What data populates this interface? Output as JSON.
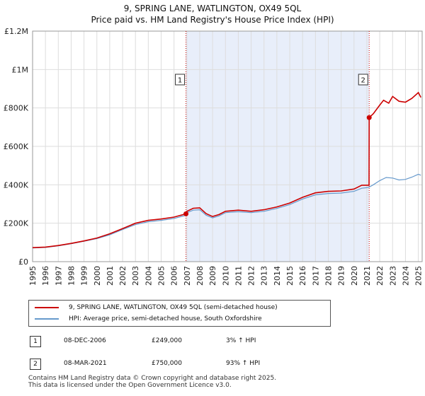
{
  "title": {
    "line1": "9, SPRING LANE, WATLINGTON, OX49 5QL",
    "line2": "Price paid vs. HM Land Registry's House Price Index (HPI)"
  },
  "colors": {
    "price_line": "#cc0000",
    "hpi_line": "#6699cc",
    "shade": "#e8eefa",
    "grid": "#dddddd",
    "marker_line": "#cc0000"
  },
  "chart_data": {
    "type": "line",
    "x_range": [
      1995,
      2025.3
    ],
    "ylim": [
      0,
      1200000
    ],
    "y_ticks": [
      0,
      200000,
      400000,
      600000,
      800000,
      1000000,
      1200000
    ],
    "y_tick_labels": [
      "£0",
      "£200K",
      "£400K",
      "£600K",
      "£800K",
      "£1M",
      "£1.2M"
    ],
    "x_ticks": [
      1995,
      1996,
      1997,
      1998,
      1999,
      2000,
      2001,
      2002,
      2003,
      2004,
      2005,
      2006,
      2007,
      2008,
      2009,
      2010,
      2011,
      2012,
      2013,
      2014,
      2015,
      2016,
      2017,
      2018,
      2019,
      2020,
      2021,
      2022,
      2023,
      2024,
      2025
    ],
    "shaded_region": [
      2006.93,
      2021.18
    ],
    "annotations": [
      {
        "label": "1",
        "x": 2006.93,
        "y": 249000
      },
      {
        "label": "2",
        "x": 2021.18,
        "y": 750000
      }
    ],
    "series": [
      {
        "name": "9, SPRING LANE, WATLINGTON, OX49 5QL (semi-detached house)",
        "color": "#cc0000",
        "points": [
          [
            1995,
            73000
          ],
          [
            1996,
            76000
          ],
          [
            1997,
            84000
          ],
          [
            1998,
            95000
          ],
          [
            1999,
            108000
          ],
          [
            2000,
            123000
          ],
          [
            2001,
            145000
          ],
          [
            2002,
            172000
          ],
          [
            2003,
            200000
          ],
          [
            2004,
            215000
          ],
          [
            2005,
            222000
          ],
          [
            2006,
            232000
          ],
          [
            2006.93,
            249000
          ],
          [
            2007,
            262000
          ],
          [
            2007.5,
            278000
          ],
          [
            2008,
            280000
          ],
          [
            2008.5,
            250000
          ],
          [
            2009,
            235000
          ],
          [
            2009.5,
            245000
          ],
          [
            2010,
            262000
          ],
          [
            2011,
            268000
          ],
          [
            2012,
            262000
          ],
          [
            2013,
            270000
          ],
          [
            2014,
            285000
          ],
          [
            2015,
            305000
          ],
          [
            2016,
            335000
          ],
          [
            2017,
            358000
          ],
          [
            2018,
            366000
          ],
          [
            2019,
            368000
          ],
          [
            2020,
            378000
          ],
          [
            2020.6,
            398000
          ],
          [
            2021,
            398000
          ],
          [
            2021.17,
            398000
          ],
          [
            2021.18,
            750000
          ],
          [
            2021.5,
            770000
          ],
          [
            2022,
            815000
          ],
          [
            2022.3,
            840000
          ],
          [
            2022.7,
            825000
          ],
          [
            2023,
            860000
          ],
          [
            2023.5,
            835000
          ],
          [
            2024,
            830000
          ],
          [
            2024.5,
            850000
          ],
          [
            2025,
            880000
          ],
          [
            2025.2,
            855000
          ]
        ]
      },
      {
        "name": "HPI: Average price, semi-detached house, South Oxfordshire",
        "color": "#6699cc",
        "points": [
          [
            1995,
            71000
          ],
          [
            1996,
            74000
          ],
          [
            1997,
            82000
          ],
          [
            1998,
            93000
          ],
          [
            1999,
            106000
          ],
          [
            2000,
            120000
          ],
          [
            2001,
            140000
          ],
          [
            2002,
            167000
          ],
          [
            2003,
            193000
          ],
          [
            2004,
            208000
          ],
          [
            2005,
            215000
          ],
          [
            2006,
            225000
          ],
          [
            2006.93,
            241000
          ],
          [
            2007,
            255000
          ],
          [
            2007.5,
            268000
          ],
          [
            2008,
            270000
          ],
          [
            2008.5,
            242000
          ],
          [
            2009,
            228000
          ],
          [
            2009.5,
            238000
          ],
          [
            2010,
            255000
          ],
          [
            2011,
            260000
          ],
          [
            2012,
            255000
          ],
          [
            2013,
            262000
          ],
          [
            2014,
            277000
          ],
          [
            2015,
            297000
          ],
          [
            2016,
            326000
          ],
          [
            2017,
            348000
          ],
          [
            2018,
            355000
          ],
          [
            2019,
            357000
          ],
          [
            2020,
            366000
          ],
          [
            2020.6,
            382000
          ],
          [
            2021,
            385000
          ],
          [
            2021.18,
            388000
          ],
          [
            2021.5,
            400000
          ],
          [
            2022,
            422000
          ],
          [
            2022.5,
            438000
          ],
          [
            2023,
            435000
          ],
          [
            2023.5,
            425000
          ],
          [
            2024,
            428000
          ],
          [
            2024.5,
            440000
          ],
          [
            2025,
            455000
          ],
          [
            2025.2,
            450000
          ]
        ]
      }
    ]
  },
  "legend": {
    "items": [
      {
        "label": "9, SPRING LANE, WATLINGTON, OX49 5QL (semi-detached house)",
        "color": "#cc0000"
      },
      {
        "label": "HPI: Average price, semi-detached house, South Oxfordshire",
        "color": "#6699cc"
      }
    ]
  },
  "sales": [
    {
      "num": "1",
      "date": "08-DEC-2006",
      "price": "£249,000",
      "hpi": "3% ↑ HPI"
    },
    {
      "num": "2",
      "date": "08-MAR-2021",
      "price": "£750,000",
      "hpi": "93% ↑ HPI"
    }
  ],
  "footer": {
    "line1": "Contains HM Land Registry data © Crown copyright and database right 2025.",
    "line2": "This data is licensed under the Open Government Licence v3.0."
  }
}
